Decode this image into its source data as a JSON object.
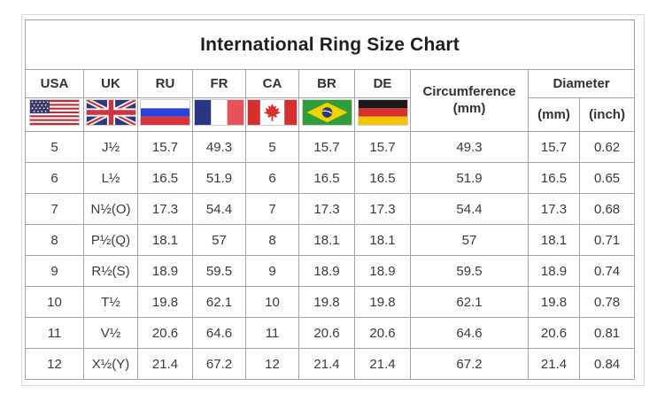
{
  "title": "International Ring Size Chart",
  "colors": {
    "background": "#ffffff",
    "table_border": "#a3a3a3",
    "frame_border": "#dadada",
    "title_text": "#1f1f1f",
    "body_text": "#3b3b3b"
  },
  "header": {
    "countries": [
      {
        "code": "USA",
        "flag": "flag-usa-icon"
      },
      {
        "code": "UK",
        "flag": "flag-uk-icon"
      },
      {
        "code": "RU",
        "flag": "flag-ru-icon"
      },
      {
        "code": "FR",
        "flag": "flag-fr-icon"
      },
      {
        "code": "CA",
        "flag": "flag-ca-icon"
      },
      {
        "code": "BR",
        "flag": "flag-br-icon"
      },
      {
        "code": "DE",
        "flag": "flag-de-icon"
      }
    ],
    "circumference_label": "Circumference",
    "circumference_unit": "(mm)",
    "diameter_label": "Diameter",
    "diameter_unit_mm": "(mm)",
    "diameter_unit_inch": "(inch)"
  },
  "chart_data": {
    "type": "table",
    "title": "International Ring Size Chart",
    "columns": [
      "USA",
      "UK",
      "RU",
      "FR",
      "CA",
      "BR",
      "DE",
      "Circumference (mm)",
      "Diameter (mm)",
      "Diameter (inch)"
    ],
    "rows": [
      [
        "5",
        "J½",
        "15.7",
        "49.3",
        "5",
        "15.7",
        "15.7",
        "49.3",
        "15.7",
        "0.62"
      ],
      [
        "6",
        "L½",
        "16.5",
        "51.9",
        "6",
        "16.5",
        "16.5",
        "51.9",
        "16.5",
        "0.65"
      ],
      [
        "7",
        "N½(O)",
        "17.3",
        "54.4",
        "7",
        "17.3",
        "17.3",
        "54.4",
        "17.3",
        "0.68"
      ],
      [
        "8",
        "P½(Q)",
        "18.1",
        "57",
        "8",
        "18.1",
        "18.1",
        "57",
        "18.1",
        "0.71"
      ],
      [
        "9",
        "R½(S)",
        "18.9",
        "59.5",
        "9",
        "18.9",
        "18.9",
        "59.5",
        "18.9",
        "0.74"
      ],
      [
        "10",
        "T½",
        "19.8",
        "62.1",
        "10",
        "19.8",
        "19.8",
        "62.1",
        "19.8",
        "0.78"
      ],
      [
        "11",
        "V½",
        "20.6",
        "64.6",
        "11",
        "20.6",
        "20.6",
        "64.6",
        "20.6",
        "0.81"
      ],
      [
        "12",
        "X½(Y)",
        "21.4",
        "67.2",
        "12",
        "21.4",
        "21.4",
        "67.2",
        "21.4",
        "0.84"
      ]
    ]
  }
}
